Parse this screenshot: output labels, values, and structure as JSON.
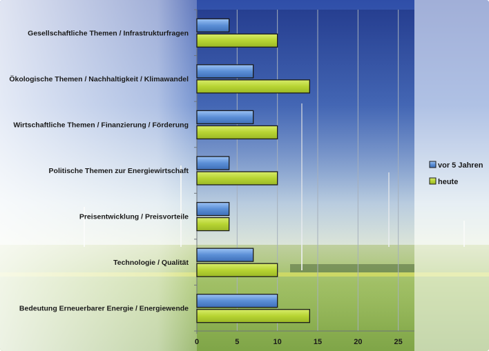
{
  "chart_data": {
    "type": "bar",
    "orientation": "horizontal",
    "categories": [
      "Gesellschaftliche Themen / Infrastrukturfragen",
      "Ökologische Themen / Nachhaltigkeit / Klimawandel",
      "Wirtschaftliche Themen / Finanzierung / Förderung",
      "Politische Themen zur Energiewirtschaft",
      "Preisentwicklung / Preisvorteile",
      "Technologie / Qualität",
      "Bedeutung Erneuerbarer Energie / Energiewende"
    ],
    "series": [
      {
        "name": "vor 5 Jahren",
        "color": "#5b8fd6",
        "values": [
          4,
          7,
          7,
          4,
          4,
          7,
          10
        ]
      },
      {
        "name": "heute",
        "color": "#b7d433",
        "values": [
          10,
          14,
          10,
          10,
          4,
          10,
          14
        ]
      }
    ],
    "xticks": [
      0,
      5,
      10,
      15,
      20,
      25
    ],
    "xlim": [
      0,
      27
    ],
    "grid": true,
    "legend_position": "right",
    "background": "landscape photo with wind turbines and green field"
  }
}
